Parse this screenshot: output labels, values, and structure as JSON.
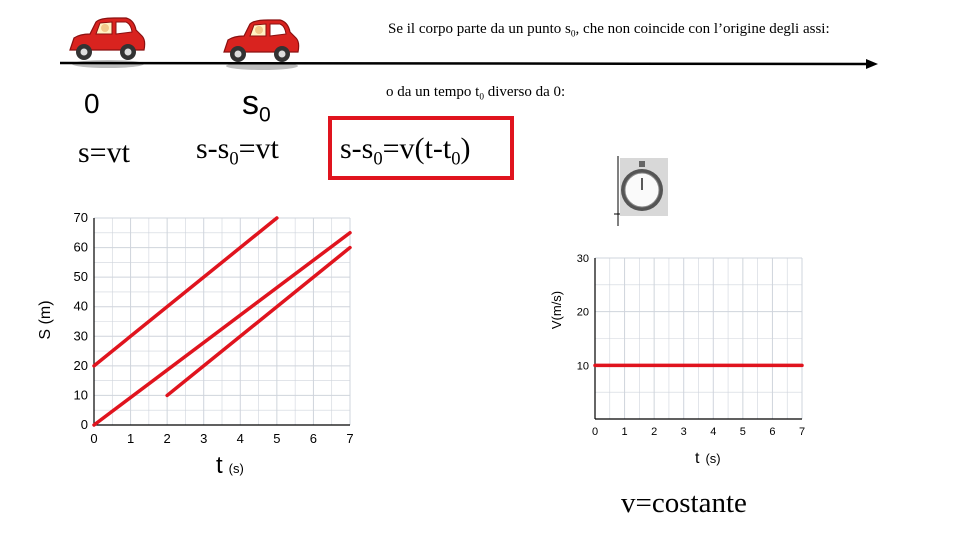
{
  "header": {
    "note_prefix": "Se il corpo parte da un punto s",
    "note_sub": "0",
    "note_suffix": ", che non coincide con l’origine degli assi:",
    "time_note_prefix": "o da un tempo t",
    "time_note_sub": "0",
    "time_note_suffix": " diverso da 0:"
  },
  "labels": {
    "origin": "0",
    "s0_main": "s",
    "s0_sub": "0",
    "eq1": "s=vt",
    "eq2_a": "s-s",
    "eq2_sub": "0",
    "eq2_b": "=vt",
    "eq3_a": "s-s",
    "eq3_sub": "0",
    "eq3_b": "=v(t-t",
    "eq3_sub2": "0",
    "eq3_c": ")",
    "v_const": "v=costante"
  },
  "icons": [
    "red-car-icon",
    "red-car-icon",
    "stopwatch-icon",
    "axis-arrow-icon"
  ],
  "colors": {
    "line": "#e0141e",
    "grid": "#cfd4dc",
    "axis": "#000000",
    "car": "#d9231f"
  },
  "chart_data": [
    {
      "type": "line",
      "xlabel": "t",
      "xlabel_unit": "(s)",
      "ylabel": "S (m)",
      "xlim": [
        0,
        7
      ],
      "ylim": [
        0,
        70
      ],
      "x_ticks": [
        "0",
        "1",
        "2",
        "3",
        "4",
        "5",
        "6",
        "7"
      ],
      "y_ticks": [
        "0",
        "10",
        "20",
        "30",
        "40",
        "50",
        "60",
        "70"
      ],
      "grid": true,
      "series": [
        {
          "x": [
            0,
            5
          ],
          "y": [
            20,
            70
          ]
        },
        {
          "x": [
            0,
            7
          ],
          "y": [
            0,
            65
          ]
        },
        {
          "x": [
            2,
            7
          ],
          "y": [
            10,
            60
          ]
        }
      ]
    },
    {
      "type": "line",
      "xlabel": "t",
      "xlabel_unit": "(s)",
      "ylabel": "V(m/s)",
      "xlim": [
        0,
        7
      ],
      "ylim": [
        0,
        30
      ],
      "x_ticks": [
        "0",
        "1",
        "2",
        "3",
        "4",
        "5",
        "6",
        "7"
      ],
      "y_ticks": [
        "10",
        "20",
        "30"
      ],
      "grid": true,
      "series": [
        {
          "x": [
            0,
            7
          ],
          "y": [
            10,
            10
          ]
        }
      ]
    }
  ]
}
